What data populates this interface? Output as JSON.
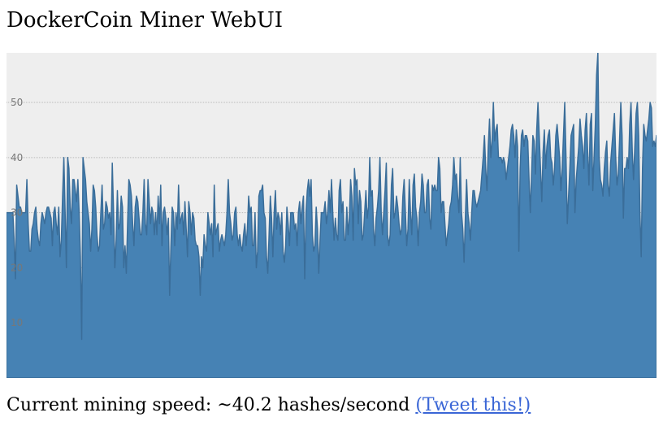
{
  "page": {
    "title": "DockerCoin Miner WebUI",
    "speed_prefix": "Current mining speed: ~",
    "speed_value": "40.2",
    "speed_suffix": " hashes/second ",
    "tweet_label": "(Tweet this!)"
  },
  "colors": {
    "plot_background": "#eeeeee",
    "area_fill": "#4682b4",
    "area_stroke": "#3a6d99"
  },
  "chart_data": {
    "type": "area",
    "title": "",
    "xlabel": "",
    "ylabel": "",
    "ylim": [
      0,
      59
    ],
    "yticks": [
      10,
      20,
      30,
      40,
      50
    ],
    "grid": true,
    "legend": "none",
    "series": [
      {
        "values": [
          30,
          30,
          30,
          30,
          30,
          30,
          25,
          18,
          35,
          33,
          31,
          31,
          30,
          30,
          30,
          30,
          36,
          28,
          23,
          23,
          27,
          28,
          30,
          31,
          27,
          25,
          24,
          28,
          30,
          29,
          28,
          30,
          31,
          31,
          30,
          29,
          24,
          30,
          31,
          28,
          26,
          31,
          22,
          25,
          33,
          40,
          30,
          20,
          40,
          38,
          31,
          28,
          36,
          36,
          34,
          32,
          36,
          30,
          22,
          7,
          40,
          38,
          36,
          32,
          30,
          28,
          23,
          27,
          35,
          34,
          31,
          26,
          23,
          24,
          30,
          35,
          27,
          28,
          32,
          31,
          29,
          30,
          26,
          39,
          30,
          20,
          25,
          34,
          27,
          28,
          33,
          31,
          20,
          24,
          19,
          28,
          36,
          35,
          33,
          28,
          24,
          31,
          33,
          32,
          29,
          26,
          26,
          30,
          36,
          28,
          26,
          36,
          32,
          28,
          31,
          30,
          26,
          30,
          26,
          33,
          28,
          35,
          24,
          30,
          31,
          29,
          26,
          29,
          15,
          24,
          31,
          30,
          24,
          30,
          27,
          35,
          28,
          29,
          30,
          26,
          32,
          27,
          22,
          32,
          30,
          26,
          30,
          29,
          25,
          24,
          24,
          22,
          15,
          22,
          20,
          26,
          24,
          23,
          30,
          28,
          26,
          28,
          22,
          35,
          26,
          27,
          28,
          23,
          25,
          26,
          25,
          24,
          26,
          30,
          36,
          30,
          28,
          25,
          26,
          30,
          31,
          26,
          24,
          26,
          24,
          23,
          26,
          28,
          24,
          27,
          33,
          30,
          31,
          24,
          24,
          30,
          20,
          23,
          33,
          34,
          34,
          35,
          30,
          29,
          22,
          19,
          26,
          33,
          29,
          22,
          30,
          34,
          27,
          30,
          29,
          26,
          30,
          23,
          21,
          24,
          31,
          28,
          24,
          30,
          30,
          30,
          27,
          28,
          24,
          30,
          32,
          28,
          31,
          33,
          18,
          30,
          34,
          36,
          33,
          36,
          26,
          23,
          24,
          31,
          27,
          19,
          25,
          30,
          30,
          30,
          32,
          28,
          30,
          34,
          30,
          36,
          30,
          25,
          29,
          26,
          25,
          34,
          36,
          30,
          32,
          25,
          25,
          31,
          26,
          29,
          36,
          33,
          25,
          38,
          35,
          36,
          28,
          34,
          32,
          25,
          26,
          30,
          34,
          29,
          31,
          40,
          33,
          34,
          27,
          24,
          29,
          31,
          34,
          40,
          30,
          26,
          30,
          34,
          39,
          26,
          24,
          26,
          35,
          38,
          29,
          30,
          33,
          31,
          28,
          26,
          27,
          33,
          36,
          30,
          24,
          27,
          36,
          30,
          26,
          35,
          37,
          31,
          29,
          24,
          30,
          32,
          37,
          35,
          30,
          30,
          35,
          36,
          29,
          27,
          35,
          34,
          35,
          34,
          34,
          40,
          38,
          30,
          32,
          32,
          28,
          24,
          26,
          28,
          31,
          32,
          35,
          40,
          36,
          37,
          33,
          30,
          40,
          30,
          27,
          21,
          29,
          36,
          30,
          28,
          25,
          30,
          34,
          34,
          32,
          31,
          32,
          33,
          34,
          37,
          40,
          44,
          38,
          34,
          42,
          47,
          40,
          43,
          50,
          43,
          45,
          46,
          40,
          40,
          40,
          39,
          40,
          39,
          36,
          38,
          40,
          42,
          45,
          46,
          44,
          40,
          45,
          42,
          23,
          38,
          44,
          45,
          42,
          44,
          44,
          43,
          36,
          30,
          37,
          44,
          43,
          37,
          45,
          50,
          44,
          38,
          32,
          41,
          45,
          38,
          42,
          44,
          45,
          40,
          39,
          35,
          38,
          44,
          46,
          43,
          40,
          34,
          38,
          44,
          50,
          40,
          28,
          33,
          38,
          44,
          45,
          46,
          30,
          36,
          39,
          42,
          47,
          44,
          42,
          38,
          45,
          48,
          41,
          35,
          46,
          48,
          34,
          40,
          46,
          55,
          59,
          40,
          36,
          35,
          33,
          38,
          41,
          43,
          35,
          33,
          39,
          42,
          45,
          48,
          40,
          35,
          37,
          43,
          50,
          44,
          29,
          38,
          38,
          40,
          38,
          46,
          50,
          41,
          36,
          42,
          48,
          50,
          44,
          30,
          22,
          38,
          46,
          44,
          43,
          45,
          47,
          50,
          49,
          42,
          43,
          42,
          44
        ]
      }
    ]
  }
}
